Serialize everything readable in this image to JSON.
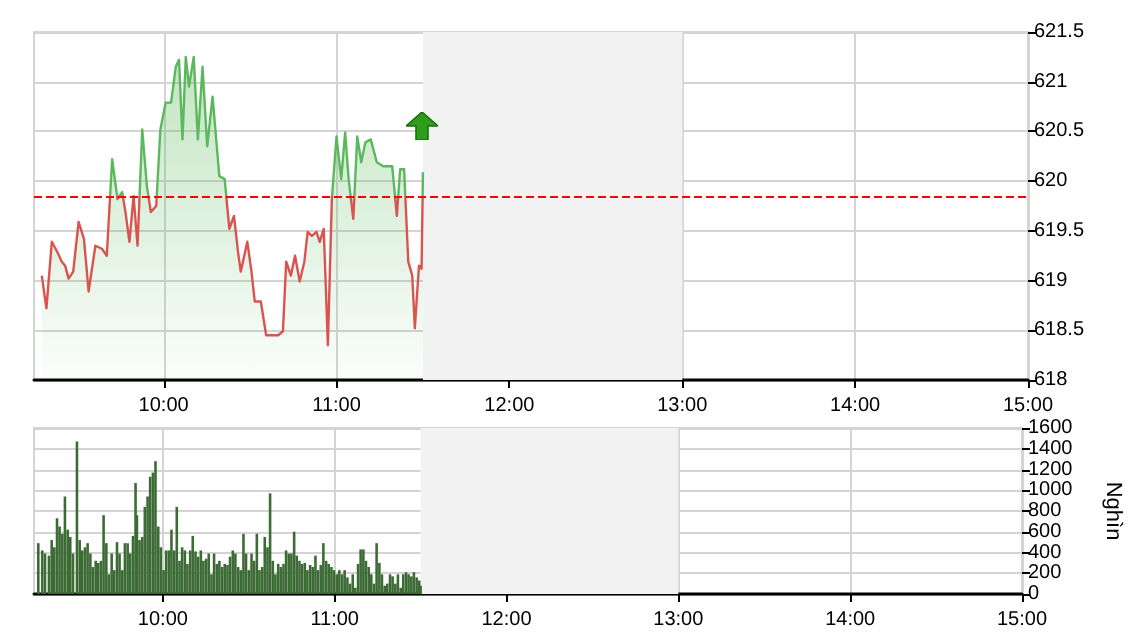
{
  "chart_data": [
    {
      "type": "area",
      "xlim": [
        9.25,
        15
      ],
      "xticks": [
        {
          "value": 10,
          "label": "10:00"
        },
        {
          "value": 11,
          "label": "11:00"
        },
        {
          "value": 12,
          "label": "12:00"
        },
        {
          "value": 13,
          "label": "13:00"
        },
        {
          "value": 14,
          "label": "14:00"
        },
        {
          "value": 15,
          "label": "15:00"
        }
      ],
      "ylim": [
        618,
        621.5
      ],
      "yticks": [
        618,
        618.5,
        619,
        619.5,
        620,
        620.5,
        621,
        621.5
      ],
      "grid": true,
      "marker": "none",
      "line_style": "solid",
      "ref_lines": [
        {
          "axis": "y",
          "value": 619.85,
          "color": "#ff0000",
          "line_style": "dashed"
        }
      ],
      "bands": [
        {
          "axis": "x",
          "from": 11.5,
          "to": 13,
          "color": "#f2f2f2"
        }
      ],
      "series": [
        {
          "color": "#5cb85c",
          "x": [
            9.295,
            9.322,
            9.353,
            9.384,
            9.411,
            9.43,
            9.45,
            9.477,
            9.508,
            9.539,
            9.566,
            9.605,
            9.643,
            9.671,
            9.702,
            9.733,
            9.76,
            9.779,
            9.802,
            9.826,
            9.849,
            9.876,
            9.903,
            9.926,
            9.957,
            9.981,
            10.012,
            10.043,
            10.07,
            10.089,
            10.109,
            10.128,
            10.147,
            10.174,
            10.198,
            10.225,
            10.252,
            10.283,
            10.322,
            10.353,
            10.38,
            10.407,
            10.43,
            10.446,
            10.484,
            10.508,
            10.527,
            10.562,
            10.593,
            10.632,
            10.663,
            10.69,
            10.709,
            10.736,
            10.76,
            10.787,
            10.814,
            10.833,
            10.857,
            10.884,
            10.903,
            10.926,
            10.95,
            10.973,
            11.0,
            11.027,
            11.05,
            11.07,
            11.097,
            11.12,
            11.143,
            11.167,
            11.198,
            11.233,
            11.271,
            11.322,
            11.349,
            11.368,
            11.391,
            11.415,
            11.438,
            11.453,
            11.477,
            11.492,
            11.5
          ],
          "values": [
            619.05,
            618.72,
            619.39,
            619.29,
            619.19,
            619.15,
            619.02,
            619.09,
            619.59,
            619.42,
            618.89,
            619.35,
            619.32,
            619.25,
            620.22,
            619.82,
            619.89,
            619.69,
            619.39,
            619.85,
            619.35,
            620.52,
            619.95,
            619.69,
            619.75,
            620.52,
            620.79,
            620.79,
            621.15,
            621.22,
            620.42,
            621.25,
            620.95,
            621.25,
            620.42,
            621.15,
            620.35,
            620.85,
            620.05,
            620.02,
            619.52,
            619.65,
            619.29,
            619.09,
            619.39,
            619.09,
            618.79,
            618.79,
            618.45,
            618.45,
            618.45,
            618.49,
            619.19,
            619.05,
            619.25,
            618.99,
            619.19,
            619.49,
            619.45,
            619.49,
            619.39,
            619.52,
            618.35,
            619.82,
            620.45,
            620.02,
            620.49,
            620.02,
            619.62,
            620.45,
            620.19,
            620.39,
            620.42,
            620.19,
            620.15,
            620.15,
            619.65,
            620.12,
            620.12,
            619.19,
            619.05,
            618.52,
            619.15,
            619.12,
            620.09
          ]
        }
      ]
    },
    {
      "type": "bar",
      "ylabel": "Nghìn",
      "xlim": [
        9.25,
        15
      ],
      "xticks": [
        {
          "value": 10,
          "label": "10:00"
        },
        {
          "value": 11,
          "label": "11:00"
        },
        {
          "value": 12,
          "label": "12:00"
        },
        {
          "value": 13,
          "label": "13:00"
        },
        {
          "value": 14,
          "label": "14:00"
        },
        {
          "value": 15,
          "label": "15:00"
        }
      ],
      "ylim": [
        0,
        1600
      ],
      "yticks": [
        0,
        200,
        400,
        600,
        800,
        1000,
        1200,
        1400,
        1600
      ],
      "grid": true,
      "bands": [
        {
          "axis": "x",
          "from": 11.5,
          "to": 13,
          "color": "#f2f2f2"
        }
      ],
      "series": [
        {
          "color": "#3d6b35",
          "x": [
            9.275,
            9.298,
            9.314,
            9.337,
            9.353,
            9.368,
            9.384,
            9.399,
            9.415,
            9.43,
            9.446,
            9.461,
            9.477,
            9.5,
            9.516,
            9.531,
            9.547,
            9.562,
            9.578,
            9.593,
            9.609,
            9.624,
            9.64,
            9.655,
            9.671,
            9.686,
            9.702,
            9.717,
            9.733,
            9.748,
            9.764,
            9.779,
            9.795,
            9.81,
            9.826,
            9.841,
            9.849,
            9.864,
            9.88,
            9.895,
            9.911,
            9.926,
            9.942,
            9.957,
            9.973,
            9.988,
            10.004,
            10.019,
            10.035,
            10.05,
            10.066,
            10.081,
            10.097,
            10.112,
            10.128,
            10.143,
            10.159,
            10.174,
            10.19,
            10.205,
            10.221,
            10.236,
            10.252,
            10.267,
            10.283,
            10.298,
            10.314,
            10.329,
            10.345,
            10.36,
            10.376,
            10.391,
            10.407,
            10.422,
            10.438,
            10.453,
            10.469,
            10.484,
            10.5,
            10.516,
            10.531,
            10.547,
            10.562,
            10.578,
            10.593,
            10.609,
            10.624,
            10.64,
            10.655,
            10.671,
            10.686,
            10.702,
            10.717,
            10.733,
            10.748,
            10.764,
            10.779,
            10.795,
            10.81,
            10.826,
            10.841,
            10.857,
            10.872,
            10.888,
            10.903,
            10.919,
            10.934,
            10.95,
            10.965,
            10.981,
            10.996,
            11.012,
            11.027,
            11.043,
            11.058,
            11.074,
            11.089,
            11.105,
            11.12,
            11.136,
            11.151,
            11.167,
            11.182,
            11.198,
            11.213,
            11.229,
            11.244,
            11.26,
            11.275,
            11.291,
            11.306,
            11.322,
            11.337,
            11.353,
            11.368,
            11.384,
            11.399,
            11.415,
            11.43,
            11.446,
            11.461,
            11.477,
            11.492,
            11.5
          ],
          "values": [
            490,
            420,
            390,
            370,
            520,
            450,
            730,
            650,
            580,
            940,
            620,
            550,
            390,
            1470,
            520,
            420,
            450,
            490,
            390,
            260,
            320,
            300,
            320,
            760,
            490,
            190,
            390,
            230,
            500,
            390,
            230,
            490,
            490,
            390,
            560,
            1070,
            760,
            520,
            550,
            840,
            940,
            1130,
            1170,
            1280,
            650,
            450,
            230,
            420,
            420,
            620,
            420,
            840,
            320,
            450,
            420,
            290,
            420,
            560,
            410,
            360,
            420,
            320,
            340,
            390,
            190,
            390,
            290,
            320,
            260,
            290,
            280,
            360,
            420,
            390,
            260,
            230,
            580,
            390,
            230,
            390,
            320,
            580,
            230,
            260,
            550,
            450,
            970,
            320,
            190,
            290,
            260,
            290,
            420,
            390,
            390,
            600,
            370,
            320,
            290,
            300,
            230,
            280,
            260,
            370,
            230,
            280,
            490,
            320,
            290,
            260,
            230,
            190,
            230,
            190,
            230,
            160,
            100,
            190,
            60,
            290,
            430,
            430,
            320,
            260,
            190,
            100,
            490,
            300,
            190,
            80,
            100,
            190,
            170,
            100,
            190,
            60,
            190,
            210,
            190,
            170,
            210,
            160,
            130,
            80
          ]
        }
      ]
    }
  ]
}
